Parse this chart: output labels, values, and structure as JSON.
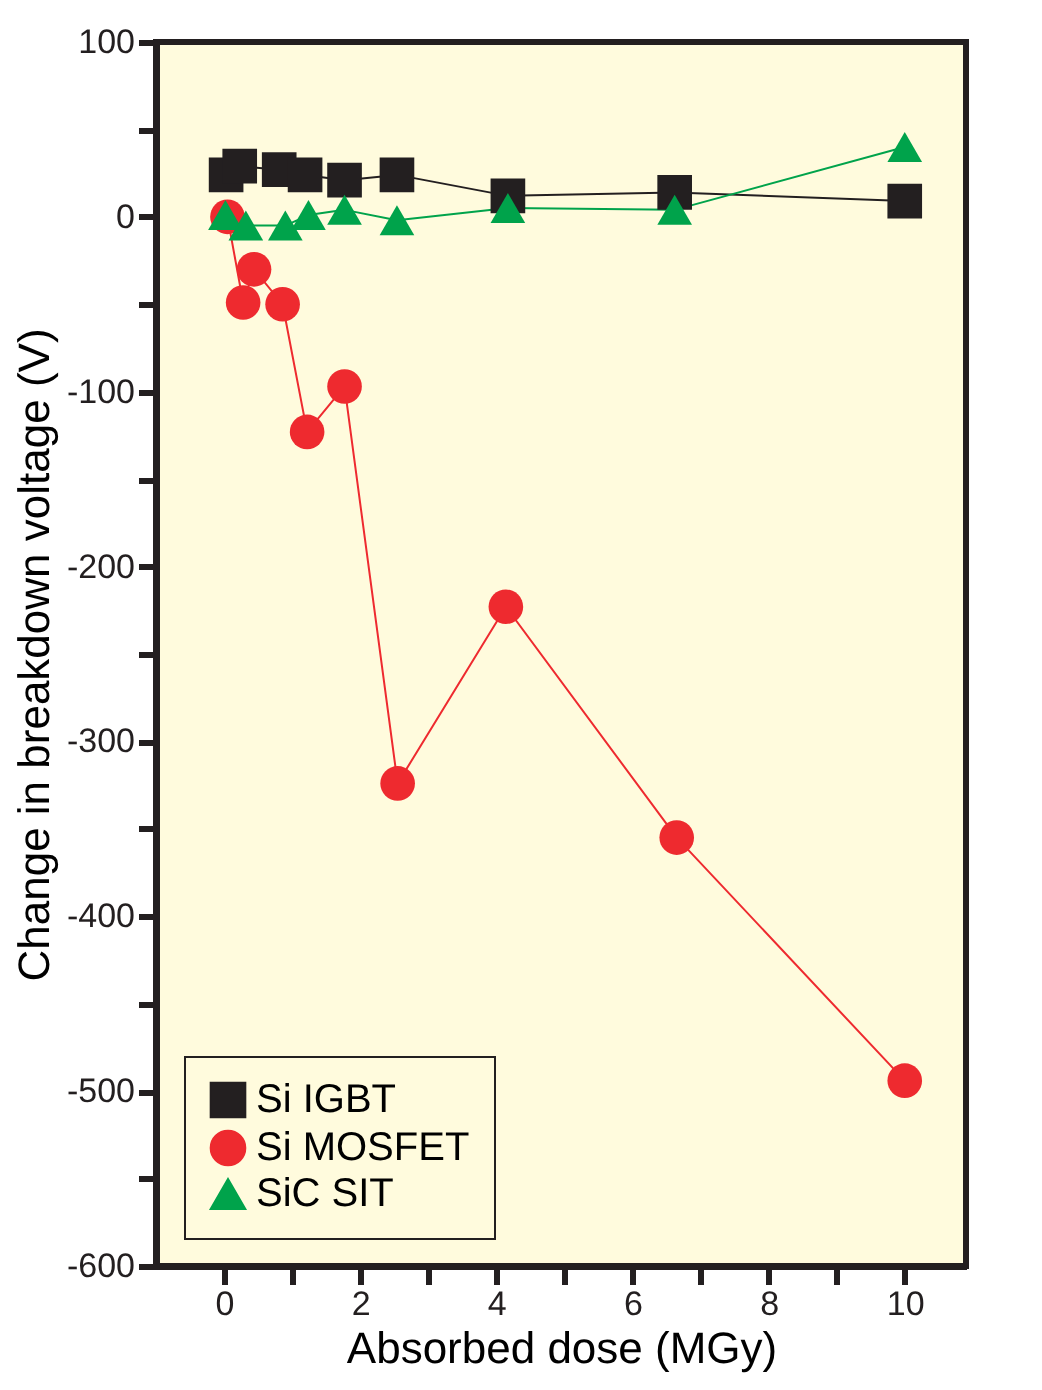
{
  "chart_data": {
    "type": "line",
    "xlabel": "Absorbed dose (MGy)",
    "ylabel": "Change in breakdown voltage (V)",
    "xlim": [
      -1,
      10.9
    ],
    "ylim": [
      -600,
      100
    ],
    "xticks": [
      0,
      {
        "value": 1,
        "label": null
      },
      2,
      {
        "value": 3,
        "label": null
      },
      4,
      {
        "value": 5,
        "label": null
      },
      6,
      {
        "value": 7,
        "label": null
      },
      8,
      {
        "value": 9,
        "label": null
      },
      10
    ],
    "yticks": [
      -600,
      {
        "value": -550,
        "label": null
      },
      -500,
      {
        "value": -450,
        "label": null
      },
      -400,
      {
        "value": -350,
        "label": null
      },
      -300,
      {
        "value": -250,
        "label": null
      },
      -200,
      {
        "value": -150,
        "label": null
      },
      -100,
      {
        "value": -50,
        "label": null
      },
      0,
      {
        "value": 50,
        "label": null
      },
      100
    ],
    "grid": false,
    "legend": "bottom left",
    "line_style": "solid",
    "series": [
      {
        "name": "Si IGBT",
        "color": "#231f20",
        "marker": "square",
        "x": [
          0.03,
          0.23,
          0.81,
          1.19,
          1.77,
          2.54,
          4.17,
          6.62,
          10
        ],
        "values": [
          24,
          29,
          27,
          24,
          21,
          24,
          12,
          14,
          9
        ]
      },
      {
        "name": "Si MOSFET",
        "color": "#ee2a2f",
        "marker": "circle",
        "x": [
          0.05,
          0.28,
          0.44,
          0.86,
          1.22,
          1.77,
          2.55,
          4.14,
          6.65,
          10
        ],
        "values": [
          0,
          -49,
          -30,
          -50,
          -123,
          -97,
          -324,
          -223,
          -355,
          -494
        ]
      },
      {
        "name": "SiC SIT",
        "color": "#00a34b",
        "marker": "triangle",
        "x": [
          0.02,
          0.32,
          0.9,
          1.24,
          1.77,
          2.54,
          4.17,
          6.62,
          10
        ],
        "values": [
          1,
          -5,
          -5,
          1,
          4,
          -2,
          5,
          4,
          40
        ]
      }
    ]
  }
}
